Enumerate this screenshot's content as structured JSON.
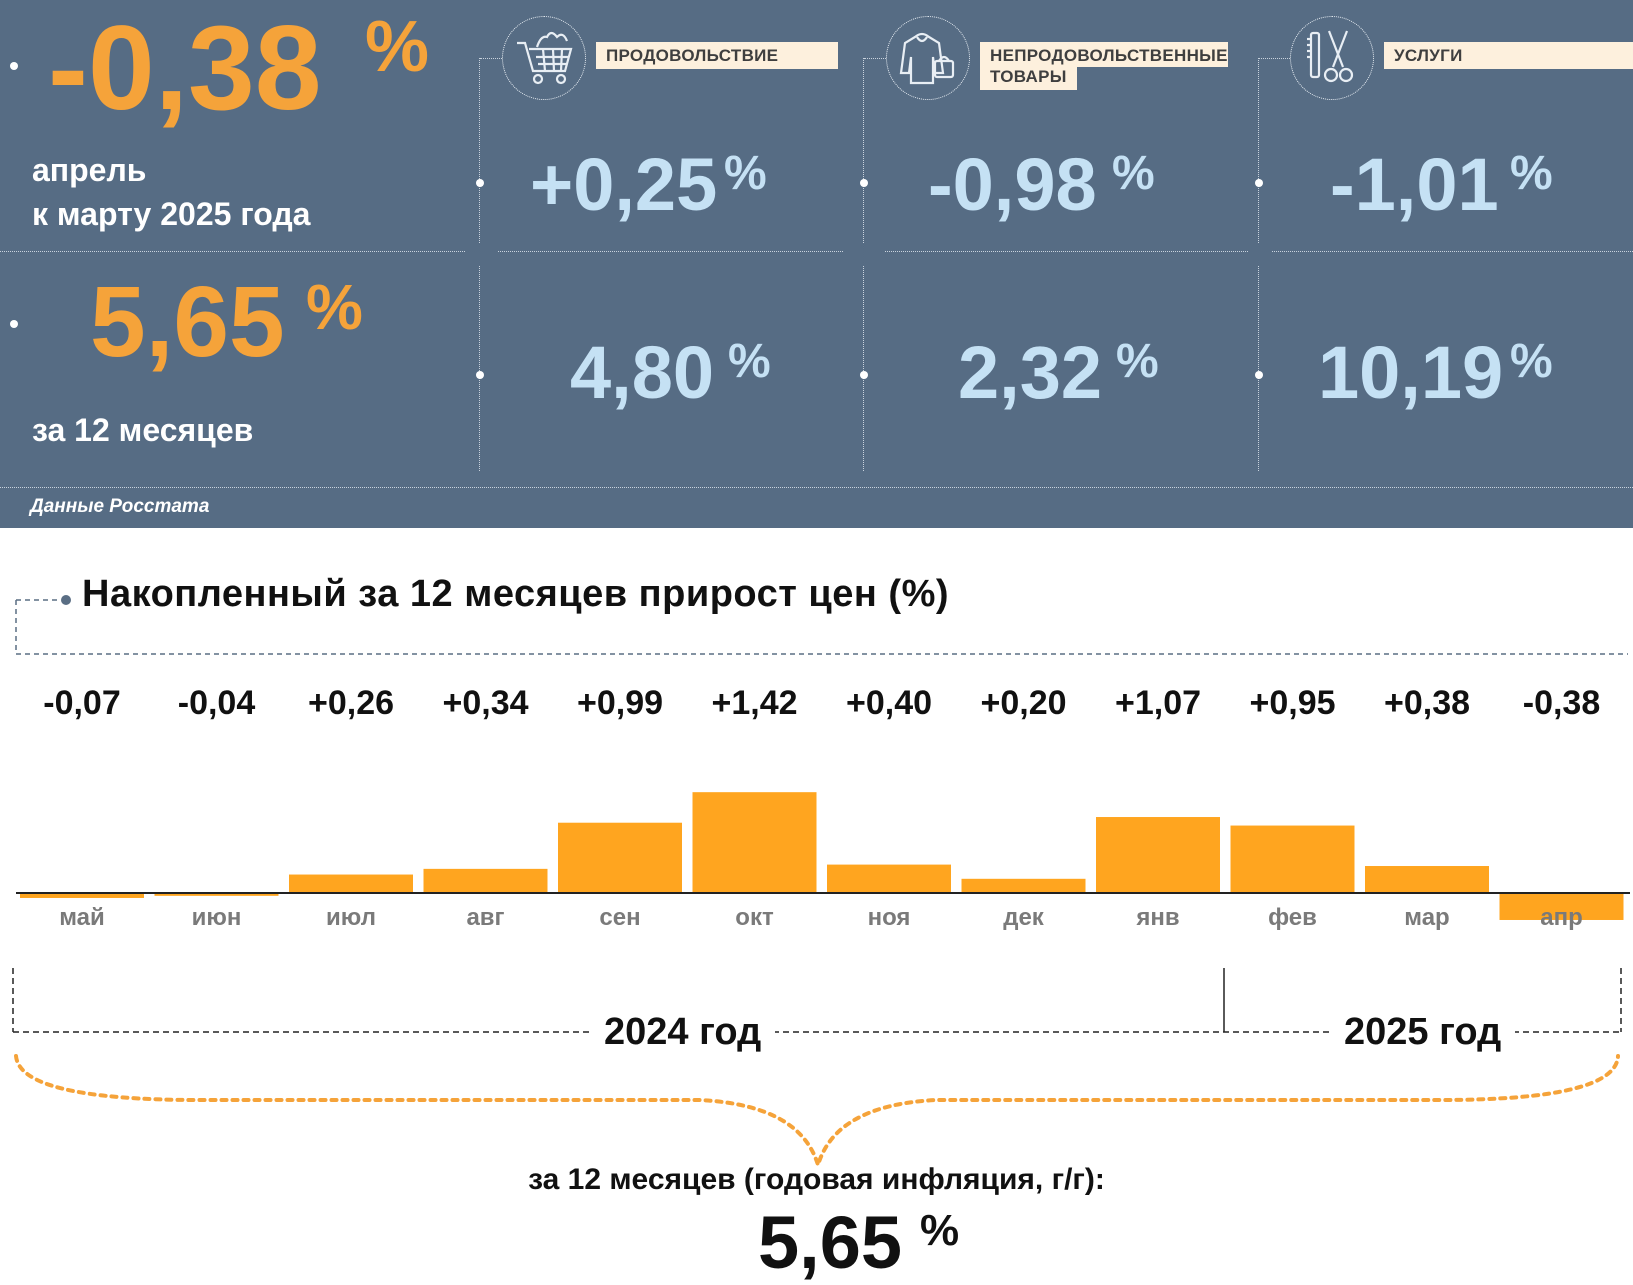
{
  "summary": {
    "monthly_value": "-0,38",
    "monthly_pct": "%",
    "monthly_caption_line1": "апрель",
    "monthly_caption_line2": "к марту 2025 года",
    "annual_value": "5,65",
    "annual_pct": "%",
    "annual_caption": "за 12 месяцев",
    "source": "Данные Росстата"
  },
  "categories": [
    {
      "label": "ПРОДОВОЛЬСТВИЕ",
      "icon": "shopping-cart-icon",
      "monthly": "+0,25",
      "annual": "4,80",
      "pct": "%"
    },
    {
      "label_line1": "НЕПРОДОВОЛЬСТВЕННЫЕ",
      "label_line2": "ТОВАРЫ",
      "icon": "clothing-icon",
      "monthly": "-0,98",
      "annual": "2,32",
      "pct": "%"
    },
    {
      "label": "УСЛУГИ",
      "icon": "scissors-comb-icon",
      "monthly": "-1,01",
      "annual": "10,19",
      "pct": "%"
    }
  ],
  "chart_title": "Накопленный за 12 месяцев прирост цен (%)",
  "chart_data": {
    "type": "bar",
    "title": "Накопленный за 12 месяцев прирост цен (%)",
    "categories": [
      "май",
      "июн",
      "июл",
      "авг",
      "сен",
      "окт",
      "ноя",
      "дек",
      "янв",
      "фев",
      "мар",
      "апр"
    ],
    "values": [
      -0.07,
      -0.04,
      0.26,
      0.34,
      0.99,
      1.42,
      0.4,
      0.2,
      1.07,
      0.95,
      0.38,
      -0.38
    ],
    "value_labels": [
      "-0,07",
      "-0,04",
      "+0,26",
      "+0,34",
      "+0,99",
      "+1,42",
      "+0,40",
      "+0,20",
      "+1,07",
      "+0,95",
      "+0,38",
      "-0,38"
    ],
    "bar_color": "#ffa51f",
    "xlabel": "",
    "ylabel": "",
    "ylim": [
      -0.4,
      1.5
    ],
    "grid": false,
    "year_groups": [
      "2024 год",
      "2025 год"
    ]
  },
  "annual": {
    "label": "за 12 месяцев (годовая инфляция, г/г):",
    "value": "5,65",
    "pct": "%"
  },
  "colors": {
    "panel": "#566c84",
    "orange": "#f5a33a",
    "blue": "#c5e1f4",
    "bar": "#ffa51f"
  }
}
